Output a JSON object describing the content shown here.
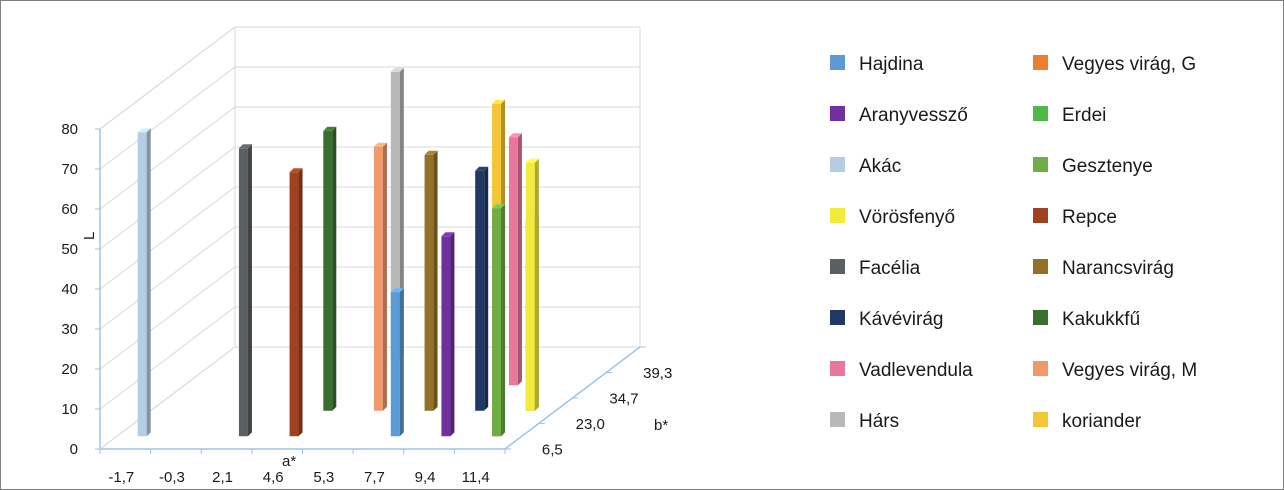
{
  "chart_data": {
    "type": "bar",
    "variant": "3d-column",
    "title": "",
    "xlabel": "a*",
    "ylabel": "L",
    "zlabel": "b*",
    "x_categories": [
      "-1,7",
      "-0,3",
      "2,1",
      "4,6",
      "5,3",
      "7,7",
      "9,4",
      "11,4"
    ],
    "z_categories": [
      "6,5",
      "23,0",
      "34,7",
      "39,3"
    ],
    "y_ticks": [
      "0",
      "10",
      "20",
      "30",
      "40",
      "50",
      "60",
      "70",
      "80"
    ],
    "ylim": [
      0,
      80
    ],
    "grid": true,
    "legend_position": "right",
    "series": [
      {
        "name": "Hajdina",
        "color": "#5B9BD5",
        "x": "7,7",
        "z": "6,5",
        "value": 36
      },
      {
        "name": "Vegyes virág, G",
        "color": "#ED7D31",
        "x": "11,4",
        "z": "6,5",
        "value": 42
      },
      {
        "name": "Aranyvessző",
        "color": "#7030A0",
        "x": "9,4",
        "z": "6,5",
        "value": 50
      },
      {
        "name": "Erdei",
        "color": "#4EB848",
        "x": "11,4",
        "z": "23,0",
        "value": 48
      },
      {
        "name": "Akác",
        "color": "#B4CCE4",
        "x": "-1,7",
        "z": "6,5",
        "value": 76
      },
      {
        "name": "Gesztenye",
        "color": "#70AD47",
        "x": "11,4",
        "z": "6,5",
        "value": 57
      },
      {
        "name": "Vörösfenyő",
        "color": "#F2EB3B",
        "x": "11,4",
        "z": "23,0",
        "value": 62
      },
      {
        "name": "Repce",
        "color": "#A0421E",
        "x": "4,6",
        "z": "6,5",
        "value": 66
      },
      {
        "name": "Facélia",
        "color": "#595F63",
        "x": "2,1",
        "z": "6,5",
        "value": 72
      },
      {
        "name": "Narancsvirág",
        "color": "#937227",
        "x": "7,7",
        "z": "23,0",
        "value": 64
      },
      {
        "name": "Kávévirág",
        "color": "#203864",
        "x": "9,4",
        "z": "23,0",
        "value": 60
      },
      {
        "name": "Kakukkfű",
        "color": "#3A6E2E",
        "x": "4,6",
        "z": "23,0",
        "value": 70
      },
      {
        "name": "Vadlevendula",
        "color": "#E8789B",
        "x": "9,4",
        "z": "34,7",
        "value": 62
      },
      {
        "name": "Vegyes virág, M",
        "color": "#F0996B",
        "x": "5,3",
        "z": "23,0",
        "value": 66
      },
      {
        "name": "Hárs",
        "color": "#B8B8B8",
        "x": "4,6",
        "z": "39,3",
        "value": 72
      },
      {
        "name": "koriander",
        "color": "#F3C637",
        "x": "7,7",
        "z": "39,3",
        "value": 64
      }
    ]
  }
}
